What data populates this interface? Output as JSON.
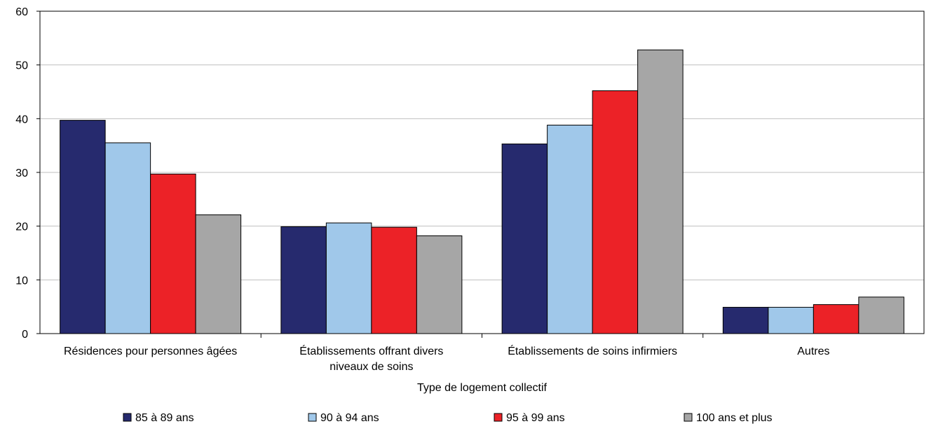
{
  "chart_data": {
    "type": "bar",
    "title": "",
    "xlabel": "Type de logement collectif",
    "ylabel": "",
    "ylim": [
      0,
      60
    ],
    "yticks": [
      0,
      10,
      20,
      30,
      40,
      50,
      60
    ],
    "grid": true,
    "legend_position": "bottom",
    "categories": [
      [
        "Résidences pour personnes âgées"
      ],
      [
        "Établissements offrant divers",
        "niveaux de soins"
      ],
      [
        "Établissements de soins infirmiers"
      ],
      [
        "Autres"
      ]
    ],
    "series": [
      {
        "name": "85 à 89 ans",
        "color": "#262a6e",
        "values": [
          39.7,
          19.9,
          35.3,
          4.9
        ]
      },
      {
        "name": "90 à 94 ans",
        "color": "#a0c8ea",
        "values": [
          35.5,
          20.6,
          38.8,
          4.9
        ]
      },
      {
        "name": "95 à 99 ans",
        "color": "#ec2227",
        "values": [
          29.7,
          19.8,
          45.2,
          5.4
        ]
      },
      {
        "name": "100 ans et plus",
        "color": "#a6a6a6",
        "values": [
          22.1,
          18.2,
          52.8,
          6.8
        ]
      }
    ]
  }
}
